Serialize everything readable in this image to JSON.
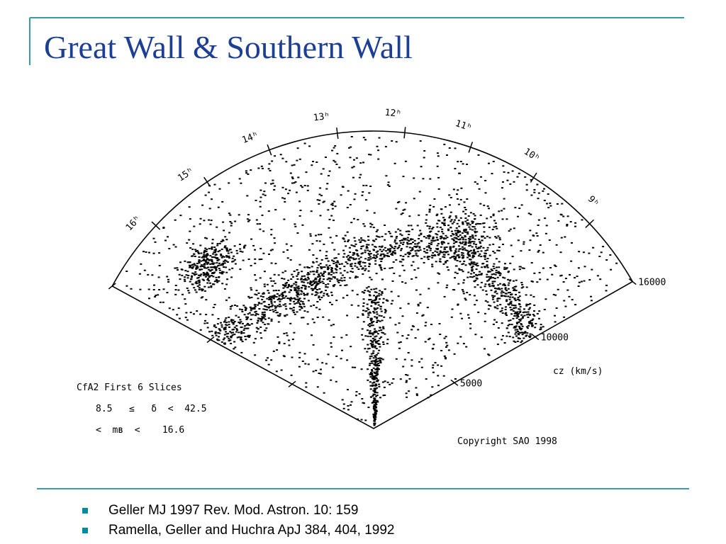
{
  "title": "Great Wall & Southern Wall",
  "figure": {
    "hour_labels": [
      "16ʰ",
      "15ʰ",
      "14ʰ",
      "13ʰ",
      "12ʰ",
      "11ʰ",
      "10ʰ",
      "9ʰ"
    ],
    "radial_labels": [
      "16000",
      "10000",
      "5000"
    ],
    "axis_label": "cz (km/s)",
    "legend_title": "CfA2 First 6 Slices",
    "legend_lines": [
      "8.5   ≤   δ  <  42.5",
      "<  mʙ  <    16.6"
    ],
    "copyright": "Copyright SAO 1998"
  },
  "bullets": [
    "Geller MJ 1997 Rev. Mod. Astron. 10: 159",
    "Ramella, Geller and Huchra ApJ 384, 404, 1992"
  ]
}
